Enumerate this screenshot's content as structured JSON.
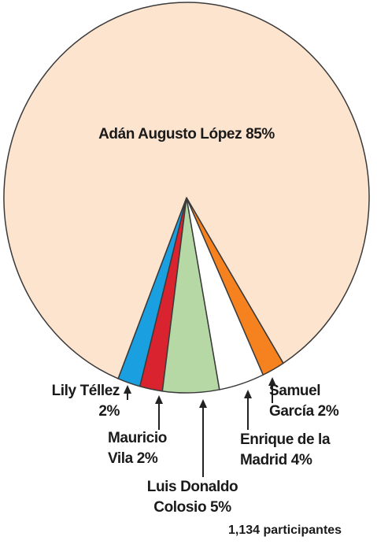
{
  "chart_data": {
    "type": "pie",
    "categories": [
      "Lily Téllez",
      "Mauricio Vila",
      "Luis Donaldo Colosio",
      "Enrique de la Madrid",
      "Samuel García",
      "Adán Augusto López"
    ],
    "values": [
      2,
      2,
      5,
      4,
      2,
      85
    ],
    "value_labels": [
      "2%",
      "2%",
      "5%",
      "4%",
      "2%",
      "85%"
    ],
    "colors": [
      "#1a9fe0",
      "#d9232e",
      "#b5d8a5",
      "#ffffff",
      "#f5821f",
      "#fde4cf"
    ],
    "note": "1,134 participantes"
  }
}
